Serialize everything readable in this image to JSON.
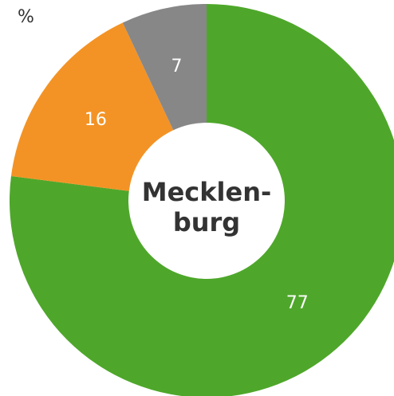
{
  "chart_data": {
    "type": "donut",
    "title": "%",
    "center_text": [
      "Mecklen-",
      "burg"
    ],
    "categories": [
      null,
      null,
      null
    ],
    "values": [
      77,
      16,
      7
    ],
    "colors": [
      "#4ea72a",
      "#f39325",
      "#878787"
    ]
  }
}
